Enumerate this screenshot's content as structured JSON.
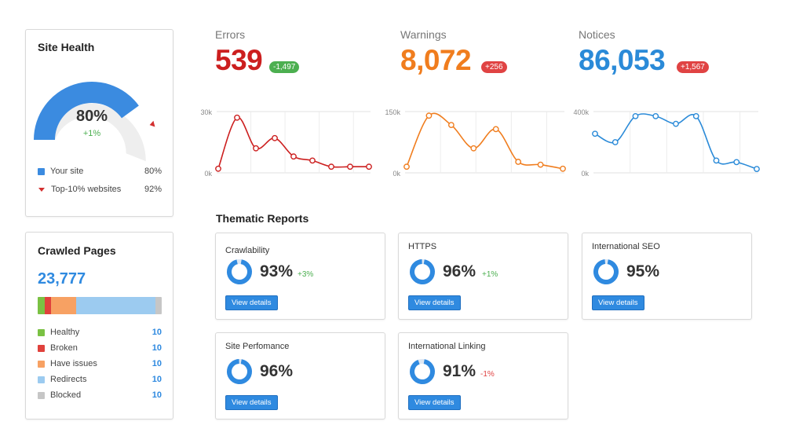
{
  "site_health": {
    "title": "Site Health",
    "score": "80%",
    "score_value": 80,
    "top10_value": 92,
    "delta": "+1%",
    "legend": [
      {
        "label": "Your site",
        "value": "80%",
        "color": "#3b8be0"
      },
      {
        "label": "Top-10% websites",
        "value": "92%",
        "color": "#d32f2f"
      }
    ]
  },
  "crawled_pages": {
    "title": "Crawled Pages",
    "count": "23,777",
    "bar_fractions": [
      0.06,
      0.05,
      0.2,
      0.64,
      0.05
    ],
    "items": [
      {
        "label": "Healthy",
        "value": "10",
        "color": "#7ac143"
      },
      {
        "label": "Broken",
        "value": "10",
        "color": "#e0413c"
      },
      {
        "label": "Have issues",
        "value": "10",
        "color": "#f7a163"
      },
      {
        "label": "Redirects",
        "value": "10",
        "color": "#9ccbf0"
      },
      {
        "label": "Blocked",
        "value": "10",
        "color": "#c6c6c6"
      }
    ]
  },
  "metrics": {
    "errors": {
      "title": "Errors",
      "value": "539",
      "badge": "-1,497",
      "color": "#cc1f1f",
      "badge_color": "#4caf50"
    },
    "warnings": {
      "title": "Warnings",
      "value": "8,072",
      "badge": "+256",
      "color": "#f07d1e",
      "badge_color": "#e04343"
    },
    "notices": {
      "title": "Notices",
      "value": "86,053",
      "badge": "+1,567",
      "color": "#2a8ad8",
      "badge_color": "#e04343"
    }
  },
  "chart_data": [
    {
      "type": "line",
      "title": "",
      "y_ticks": [
        "30k",
        "0k"
      ],
      "ylim": [
        0,
        30000
      ],
      "color": "#cc1f1f",
      "values": [
        2000,
        27000,
        12000,
        17000,
        8000,
        6000,
        3000,
        3000,
        3000
      ]
    },
    {
      "type": "line",
      "title": "",
      "y_ticks": [
        "150k",
        "0k"
      ],
      "ylim": [
        0,
        150000
      ],
      "color": "#f07d1e",
      "values": [
        15000,
        140000,
        117000,
        60000,
        107000,
        27000,
        20000,
        10000
      ]
    },
    {
      "type": "line",
      "title": "",
      "y_ticks": [
        "400k",
        "0k"
      ],
      "ylim": [
        0,
        400000
      ],
      "color": "#2a8ad8",
      "values": [
        255000,
        200000,
        370000,
        370000,
        320000,
        370000,
        80000,
        70000,
        25000
      ]
    }
  ],
  "thematic": {
    "title": "Thematic Reports",
    "reports": [
      {
        "title": "Crawlability",
        "pct": "93%",
        "value": 93,
        "delta": "+3%",
        "delta_color": "#4caf50",
        "button": "View details"
      },
      {
        "title": "HTTPS",
        "pct": "96%",
        "value": 96,
        "delta": "+1%",
        "delta_color": "#4caf50",
        "button": "View details"
      },
      {
        "title": "International SEO",
        "pct": "95%",
        "value": 95,
        "delta": "",
        "delta_color": "#4caf50",
        "button": "View details"
      },
      {
        "title": "Site Perfomance",
        "pct": "96%",
        "value": 96,
        "delta": "",
        "delta_color": "#4caf50",
        "button": "View details"
      },
      {
        "title": "International Linking",
        "pct": "91%",
        "value": 91,
        "delta": "-1%",
        "delta_color": "#e04343",
        "button": "View details"
      }
    ]
  }
}
